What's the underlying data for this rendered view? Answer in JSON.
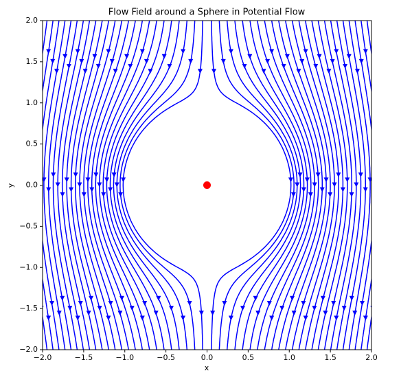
{
  "chart_data": {
    "type": "streamplot",
    "title": "Flow Field around a Sphere in Potential Flow",
    "x_label": "x",
    "y_label": "y",
    "xlim": [
      -2,
      2
    ],
    "ylim": [
      -2,
      2
    ],
    "xticks": [
      {
        "value": -2,
        "label": "−2.0"
      },
      {
        "value": -1.5,
        "label": "−1.5"
      },
      {
        "value": -1,
        "label": "−1.0"
      },
      {
        "value": -0.5,
        "label": "−0.5"
      },
      {
        "value": 0,
        "label": "0.0"
      },
      {
        "value": 0.5,
        "label": "0.5"
      },
      {
        "value": 1,
        "label": "1.0"
      },
      {
        "value": 1.5,
        "label": "1.5"
      },
      {
        "value": 2,
        "label": "2.0"
      }
    ],
    "yticks": [
      {
        "value": -2,
        "label": "−2.0"
      },
      {
        "value": -1.5,
        "label": "−1.5"
      },
      {
        "value": -1,
        "label": "−1.0"
      },
      {
        "value": -0.5,
        "label": "−0.5"
      },
      {
        "value": 0,
        "label": "0.0"
      },
      {
        "value": 0.5,
        "label": "0.5"
      },
      {
        "value": 1,
        "label": "1.0"
      },
      {
        "value": 1.5,
        "label": "1.5"
      },
      {
        "value": 2,
        "label": "2.0"
      }
    ],
    "stream_color": "#0000ff",
    "marker": {
      "x": 0,
      "y": 0,
      "color": "#ff0000"
    }
  }
}
